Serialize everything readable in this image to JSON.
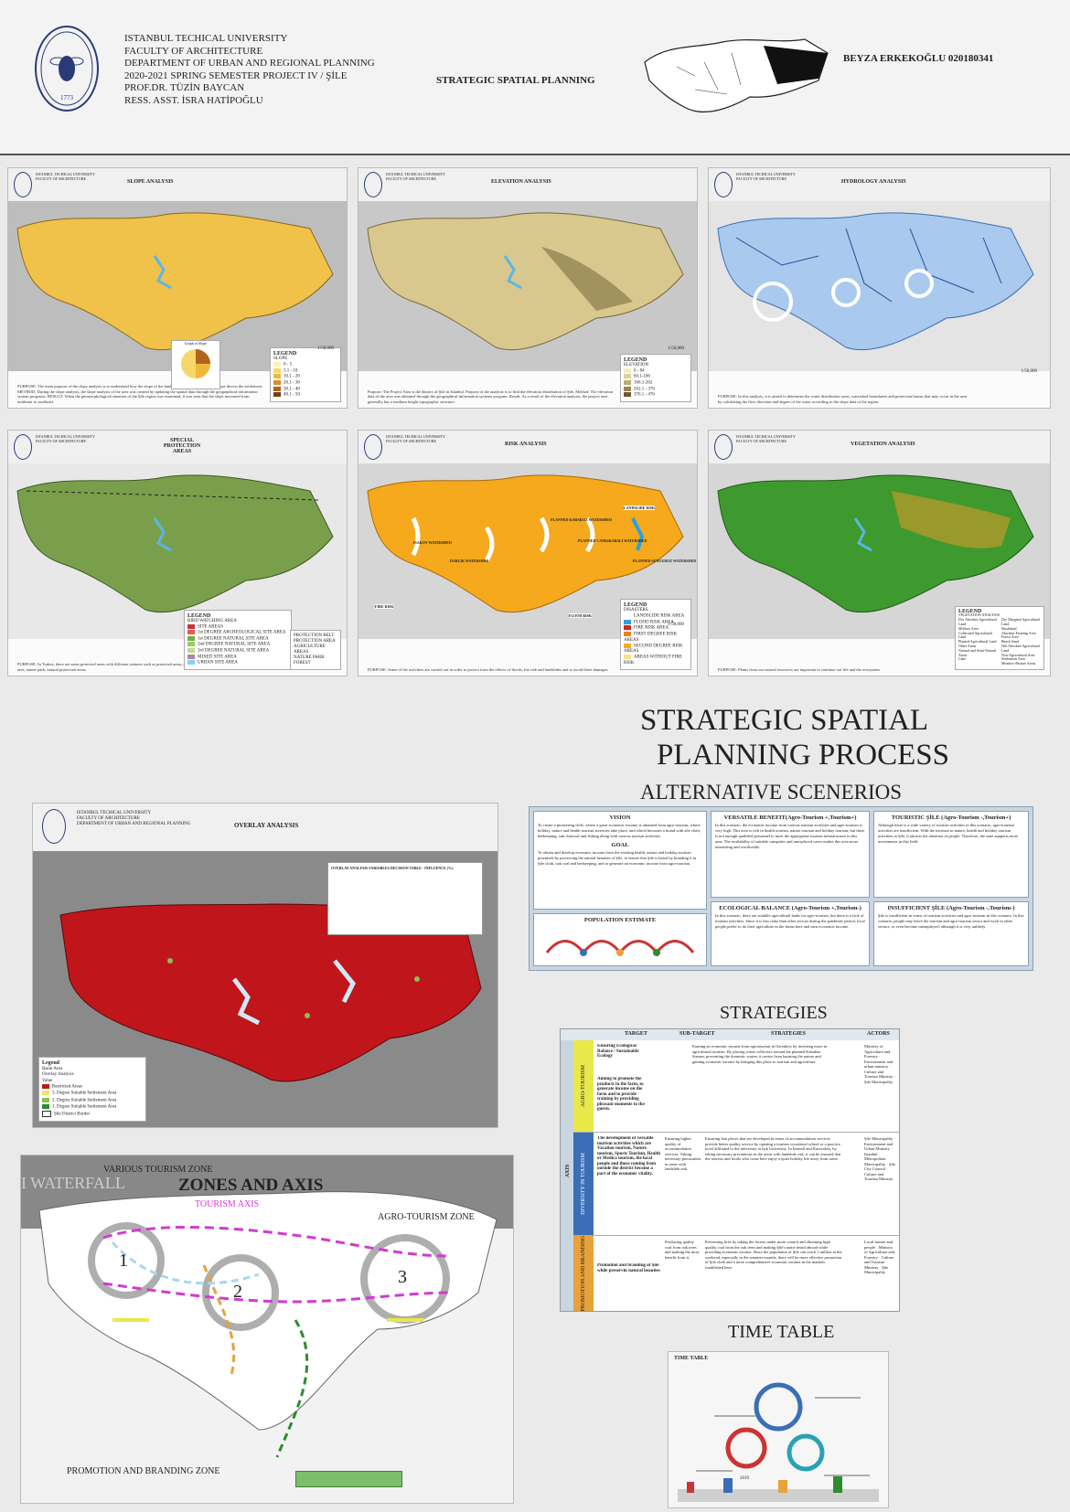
{
  "header": {
    "lines": [
      "ISTANBUL TECHICAL UNIVERSITY",
      "FACULTY OF ARCHITECTURE",
      "DEPARTMENT OF URBAN AND REGIONAL PLANNING",
      "2020-2021 SPRING SEMESTER     PROJECT IV / ŞİLE",
      "PROF.DR. TÜZİN BAYCAN",
      "RESS. ASST. İSRA HATİPOĞLU"
    ],
    "title": "STRATEGIC SPATIAL PLANNING",
    "author": "BEYZA ERKEKOĞLU 020180341",
    "logo_text": "ISTANBUL TEKNİK ÜNİVERSİTESİ",
    "logo_year": "1773"
  },
  "panels": [
    {
      "title": "SLOPE ANALYSIS",
      "legend_title": "LEGEND",
      "legend_sub": "SLOPE",
      "legend_items": [
        "0 - 5",
        "5.1 - 10",
        "10.1 - 20",
        "20.1 - 30",
        "30.1 - 40",
        "40.1 - 50"
      ],
      "chart_title": "Graph of Slope",
      "scale": "1/50,000",
      "text": "PURPOSE: The main purpose of the slope analysis is to understand how the slope of the land on the Şile is and how this slope directs the settlement. METHOD: During the slope analysis, the slope analysis of the area was created by updating the spatial data through the geographical information system programs. RESULT: When the geomorphological situation of the Şile region was examined, it was seen that the slope increased from northeast to southeast.",
      "color": "#f0c24a"
    },
    {
      "title": "ELEVATION ANALYSIS",
      "legend_title": "LEGEND",
      "legend_sub": "ELEVATION",
      "legend_items": [
        "0 - 84",
        "84.1-166",
        "166.1-262",
        "262.1 - 376",
        "376.1 - 476"
      ],
      "scale": "1/50,000",
      "text": "Purpose: The Project Area is the district of Şile in Istanbul. Purpose of the analysis is to find the elevation distribution of Şile. Method: The elevation data of the area was obtained through the geographical information systems program. Result: As a result of the elevation analysis, the project area generally has a medium height topographic structure.",
      "color": "#d8c88e"
    },
    {
      "title": "HYDROLOGY ANALYSIS",
      "scale": "1/50,000",
      "text": "PURPOSE: In this analysis, it is aimed to determine the water distribution areas, watershed boundaries and protection basins that may occur in the area by calculating the flow direction and degree of the water according to the slope data of the region.",
      "color": "#8fb7e8"
    },
    {
      "title": "SPECIAL PROTECTION AREAS",
      "legend_title": "LEGEND",
      "legend_sub": "BIRD WATCHING AREA",
      "legend_items": [
        "SITE AREAS",
        "1st DEGREE ARCHEOLOGICAL SITE AREA",
        "1st DEGREE NATURAL SITE AREA",
        "2nd DEGREE NATURAL SITE AREA",
        "3rd DEGREE NATURAL SITE AREA",
        "MIXED SITE AREA",
        "URBAN SITE AREA"
      ],
      "extra_legend": [
        "PROTECTION BELT",
        "PROTECTION AREA",
        "AGRICULTURE AREAS",
        "NATURE PARK",
        "FOREST"
      ],
      "scale": "1/50,000",
      "text": "PURPOSE: In Turkey, there are areas protected areas with different statuses such as protected areas, national park, special environmental protection area, nature park, natural protection areas.",
      "color": "#7a9f4c"
    },
    {
      "title": "RISK ANALYSIS",
      "legend_title": "LEGEND",
      "legend_sub": "DISASTERS",
      "legend_items": [
        "LANDSLIDE RISK AREA",
        "FLOOD RISK AREA",
        "FIRE RISK AREA",
        "FIRST DEGREE RISK AREAS",
        "SECOND DEGREE RISK AREAS",
        "AREAS WITHOUT FIRE RISK"
      ],
      "labels": [
        "LANDSLIDE RISK",
        "FIRE RISK",
        "FLOOD RISK",
        "DARLIK WATERSHED",
        "PLANNED KABAKOZ WATERSHED",
        "PLANNED CANKIRABALI WATERSHED",
        "PLANNED SUNGUROZ WATERSHED",
        "ISAKOY WATERSHED"
      ],
      "scale": "1/50,000",
      "text": "PURPOSE: Some of the activities are carried out in order to protect from the effects of floods, fire risk and landslides and to avoid these damages.",
      "color": "#f6a91c"
    },
    {
      "title": "VEGETATION ANALYSIS",
      "legend_title": "LEGEND",
      "legend_sub": "VEGETATION ANALYSIS",
      "legend_items": [
        "Dry Absolute Agricultural Land",
        "Military Area",
        "Cultivated Agricultural Land",
        "Planted Agricultural Land",
        "Other Areas",
        "Natural and Semi-Natural Areas",
        "Lake",
        "Dry Marginal Agricultural Land",
        "Shrubland",
        "Absolute Farming Area",
        "Forest Area",
        "Beach Sand",
        "Wet Absolute Agricultural Land",
        "Non-Agricultural Area",
        "Settlement Area",
        "Meadow-Pasture Areas"
      ],
      "scale": "1/50,000",
      "text": "PURPOSE: Plants from our natural resources are important to continue our life and the ecosystem.",
      "color": "#3e9a2e"
    }
  ],
  "main_title": {
    "line1": "STRATEGIC SPATIAL",
    "line2": "PLANNING PROCESS"
  },
  "alt_title": "ALTERNATIVE SCENERIOS",
  "overlay": {
    "title": "OVERLAY ANALYSIS",
    "legend_title": "Legend",
    "legend_items": [
      "Basin Area",
      "Overlay Analysis",
      "Value",
      "Restricted Areas",
      "3. Degree Suitable Settlement Area",
      "2. Degree Suitable Settlement Area",
      "1. Degree Suitable Settlement Area",
      "Şile District Border"
    ],
    "table_title": "OVERLAY ANALYSIS VARIABLES DECISION TABLE - INFLUENCE (%)"
  },
  "scenarios": {
    "vision_title": "VISION",
    "vision_text": "To create a pioneering chile, where a great economic income is obtained from agro-tourism, where holiday, nature and health tourism activities take place, and which becomes a brand with sile cloth, beekeeping, oak charcoal and fishing along with various tourism activities.",
    "goal_title": "GOAL",
    "goal_text": "To obtain and develop economic income from the existing health, nature and holiday tourism potentials by preserving the natural beauties of Şile, to ensure that Şile is heard by branding it in Şile cloth, oak coal and beekeeping, and to generate an economic income from agro-tourism.",
    "pop_title": "POPULATION ESTIMATE",
    "versatile_title": "VERSATILE BENEFIT(Agro-Tourism +,Tourism+)",
    "versatile_text": "In this scenario, the economic income from various tourism activities and agro-tourism is very high. This area is rich in health tourism, nature tourism and holiday tourism, but there is not enough qualified personnel to meet the appropriate tourism infrastructure in this area. The availability of suitable campsites and unexplored caves makes this area more interesting and worthwhile.",
    "touristic_title": "TOURISTIC ŞİLE (Agro-Tourism -,Tourism+)",
    "touristic_text": "Although there is a wide variety of tourism activities in this scenario, agro-tourism activities are insufficient. With the increase in nature, health and holiday tourism activities in Şile, it attracts the attention of people. Therefore, the state supports more investments in this field.",
    "eco_title": "ECOLOGICAL BALANCE (Agro-Tourism +,Tourism-)",
    "eco_text": "In this scenario, there are suitable agricultural lands for agro-tourism, but there is a lack of tourism activities. Since it is less risky than other sectors during the pandemic period, local people prefer to do their agriculture in the farms here and earn economic income.",
    "insufficient_title": "INSUFFICIENT ŞİLE (Agro-Tourism -,Tourism-)",
    "insufficient_text": "Şile is insufficient in terms of tourism activities and agro-tourism in this scenario. In this scenario, people may leave the tourism and agro-tourism sector and work in other sectors, or even become unemployed, although it is very unlikely."
  },
  "strategies": {
    "title": "STRATEGIES",
    "headers": [
      "TARGET",
      "SUB-TARGET",
      "STRATEGIES",
      "ACTORS"
    ],
    "axis_label": "AXIS",
    "rows": [
      {
        "label": "AGRO-TOURISM",
        "color": "#e8e84a",
        "target": "Ensuring Ecological Balance / Sustainable Ecology",
        "sub": "Aiming to promote the products in the farm, to generate income on the farm and to provide training by providing pleasant moments to the guests.",
        "strategy": "Earning an economic income from agrotourism in Gerenköy by investing more in agricultural tourism. By placing waste collectors around the planned Kabakoz Stream, preventing the domestic wastes it carries from harming the nature and gaining economic income by bringing this place to tourism and agriculture.",
        "actors": "Ministry of Agriculture and Forestry · Environment and urban ministry · Culture and Tourism Ministry · Şile Municipality"
      },
      {
        "label": "DIVERSITY IN TOURISM",
        "color": "#3a6fb7",
        "target": "The development of versatile tourism activities which are Vacation tourism, Nature tourism, Sports Tourism, Health or Medica tourism, the local people and those coming from outside the district become a part of the economic vitality.",
        "sub": "Ensuring higher quality of accommodation services. Taking necessary precautions in areas with landslide risk.",
        "strategy": "Ensuring that places that are developed in terms of accommodation services provide better quality service by opening a tourism vocational school or a practice hotel affiliated to the university at Işık University. In İmrenli and Karacaköy, by taking necessary precautions in the areas with landslide risk, it can be ensured that the tourists and locals who come here enjoy a quiet holiday life away from noise.",
        "actors": "Şile Municipality · Environment and Urban Ministry · Istanbul Metropolitan Municipality · Şile City Council · Culture and Tourism Ministry"
      },
      {
        "label": "PROMOTION AND BRANDING",
        "color": "#e8a23a",
        "target": "Promotion and branding of Şile while preservin natural beauties",
        "sub": "Producing quality coal from oak trees and making the most benefit from it.",
        "strategy": "Preventing fires by taking the forests under more control and obtaining high quality coal from the oak trees and making Şile's name heard abroad while providing economic income. Since the population of Şile can reach 1 million at the weekend, especially in the summer months, there will be more effective promotion of Şile cloth and a more comprehensive economic income in the markets established here.",
        "actors": "Local farmer and people · Ministry of Agriculture and Forestry · Culture and Tourism Ministry · Şile Municipality"
      }
    ]
  },
  "zones": {
    "title": "ZONES AND AXIS",
    "waterfall": "I WATERFALL",
    "various": "VARIOUS TOURISM ZONE",
    "axis": "TOURISM AXIS",
    "agro": "AGRO-TOURISM ZONE",
    "promo": "PROMOTION AND BRANDING ZONE",
    "nums": [
      "1",
      "2",
      "3"
    ]
  },
  "timetable": {
    "title": "TIME TABLE",
    "inner_title": "TIME TABLE",
    "year": "2019"
  },
  "colors": {
    "overlay_red": "#c0151a",
    "border": "#555555"
  }
}
